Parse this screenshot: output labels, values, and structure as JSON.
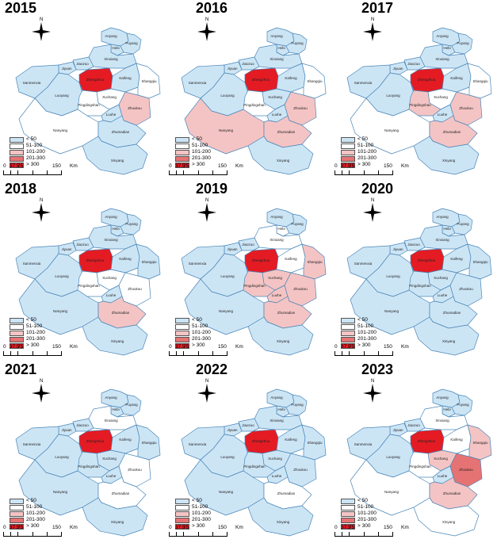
{
  "units": "Km",
  "scale_ticks": [
    "0",
    "37.5",
    "75",
    "150"
  ],
  "north_label": "N",
  "legend": [
    {
      "label": "< 50",
      "color": "#cce5f5"
    },
    {
      "label": "51-100",
      "color": "#ffffff"
    },
    {
      "label": "101-200",
      "color": "#f4c4c4"
    },
    {
      "label": "201-300",
      "color": "#e57373"
    },
    {
      "label": "> 300",
      "color": "#e41b23"
    }
  ],
  "cities": [
    "Anyang",
    "Hebi",
    "Puyang",
    "Xinxiang",
    "Jiaozuo",
    "Jiyuan",
    "Sanmenxia",
    "Luoyang",
    "Zhengzhou",
    "Kaifeng",
    "Shangqiu",
    "Xuchang",
    "Pingdingshan",
    "Luohe",
    "Zhoukou",
    "Nanyang",
    "Zhumadian",
    "Xinyang"
  ],
  "maps": [
    {
      "year": "2015",
      "classes": {
        "Anyang": 0,
        "Hebi": 0,
        "Puyang": 0,
        "Xinxiang": 0,
        "Jiaozuo": 0,
        "Jiyuan": 0,
        "Sanmenxia": 0,
        "Luoyang": 0,
        "Zhengzhou": 4,
        "Kaifeng": 0,
        "Shangqiu": 1,
        "Xuchang": 1,
        "Pingdingshan": 1,
        "Luohe": 0,
        "Zhoukou": 2,
        "Nanyang": 1,
        "Zhumadian": 0,
        "Xinyang": 0
      }
    },
    {
      "year": "2016",
      "classes": {
        "Anyang": 0,
        "Hebi": 0,
        "Puyang": 0,
        "Xinxiang": 0,
        "Jiaozuo": 0,
        "Jiyuan": 0,
        "Sanmenxia": 0,
        "Luoyang": 0,
        "Zhengzhou": 4,
        "Kaifeng": 0,
        "Shangqiu": 1,
        "Xuchang": 0,
        "Pingdingshan": 1,
        "Luohe": 0,
        "Zhoukou": 2,
        "Nanyang": 2,
        "Zhumadian": 2,
        "Xinyang": 0
      }
    },
    {
      "year": "2017",
      "classes": {
        "Anyang": 0,
        "Hebi": 0,
        "Puyang": 0,
        "Xinxiang": 0,
        "Jiaozuo": 0,
        "Jiyuan": 0,
        "Sanmenxia": 0,
        "Luoyang": 0,
        "Zhengzhou": 4,
        "Kaifeng": 0,
        "Shangqiu": 1,
        "Xuchang": 1,
        "Pingdingshan": 2,
        "Luohe": 0,
        "Zhoukou": 2,
        "Nanyang": 1,
        "Zhumadian": 2,
        "Xinyang": 0
      }
    },
    {
      "year": "2018",
      "classes": {
        "Anyang": 0,
        "Hebi": 0,
        "Puyang": 0,
        "Xinxiang": 0,
        "Jiaozuo": 0,
        "Jiyuan": 0,
        "Sanmenxia": 0,
        "Luoyang": 0,
        "Zhengzhou": 4,
        "Kaifeng": 0,
        "Shangqiu": 0,
        "Xuchang": 1,
        "Pingdingshan": 1,
        "Luohe": 0,
        "Zhoukou": 1,
        "Nanyang": 0,
        "Zhumadian": 2,
        "Xinyang": 0
      }
    },
    {
      "year": "2019",
      "classes": {
        "Anyang": 0,
        "Hebi": 1,
        "Puyang": 0,
        "Xinxiang": 1,
        "Jiaozuo": 0,
        "Jiyuan": 0,
        "Sanmenxia": 0,
        "Luoyang": 0,
        "Zhengzhou": 4,
        "Kaifeng": 1,
        "Shangqiu": 2,
        "Xuchang": 2,
        "Pingdingshan": 2,
        "Luohe": 2,
        "Zhoukou": 2,
        "Nanyang": 0,
        "Zhumadian": 2,
        "Xinyang": 0
      }
    },
    {
      "year": "2020",
      "classes": {
        "Anyang": 0,
        "Hebi": 0,
        "Puyang": 0,
        "Xinxiang": 0,
        "Jiaozuo": 0,
        "Jiyuan": 0,
        "Sanmenxia": 0,
        "Luoyang": 0,
        "Zhengzhou": 4,
        "Kaifeng": 0,
        "Shangqiu": 0,
        "Xuchang": 0,
        "Pingdingshan": 0,
        "Luohe": 0,
        "Zhoukou": 0,
        "Nanyang": 0,
        "Zhumadian": 0,
        "Xinyang": 0
      }
    },
    {
      "year": "2021",
      "classes": {
        "Anyang": 0,
        "Hebi": 0,
        "Puyang": 0,
        "Xinxiang": 1,
        "Jiaozuo": 0,
        "Jiyuan": 0,
        "Sanmenxia": 0,
        "Luoyang": 0,
        "Zhengzhou": 4,
        "Kaifeng": 0,
        "Shangqiu": 0,
        "Xuchang": 0,
        "Pingdingshan": 0,
        "Luohe": 0,
        "Zhoukou": 1,
        "Nanyang": 0,
        "Zhumadian": 1,
        "Xinyang": 0
      }
    },
    {
      "year": "2022",
      "classes": {
        "Anyang": 0,
        "Hebi": 0,
        "Puyang": 0,
        "Xinxiang": 0,
        "Jiaozuo": 0,
        "Jiyuan": 0,
        "Sanmenxia": 0,
        "Luoyang": 0,
        "Zhengzhou": 4,
        "Kaifeng": 0,
        "Shangqiu": 0,
        "Xuchang": 0,
        "Pingdingshan": 0,
        "Luohe": 0,
        "Zhoukou": 0,
        "Nanyang": 0,
        "Zhumadian": 1,
        "Xinyang": 0
      }
    },
    {
      "year": "2023",
      "classes": {
        "Anyang": 0,
        "Hebi": 0,
        "Puyang": 0,
        "Xinxiang": 1,
        "Jiaozuo": 0,
        "Jiyuan": 0,
        "Sanmenxia": 0,
        "Luoyang": 0,
        "Zhengzhou": 4,
        "Kaifeng": 1,
        "Shangqiu": 2,
        "Xuchang": 2,
        "Pingdingshan": 1,
        "Luohe": 0,
        "Zhoukou": 3,
        "Nanyang": 1,
        "Zhumadian": 2,
        "Xinyang": 1
      }
    }
  ]
}
